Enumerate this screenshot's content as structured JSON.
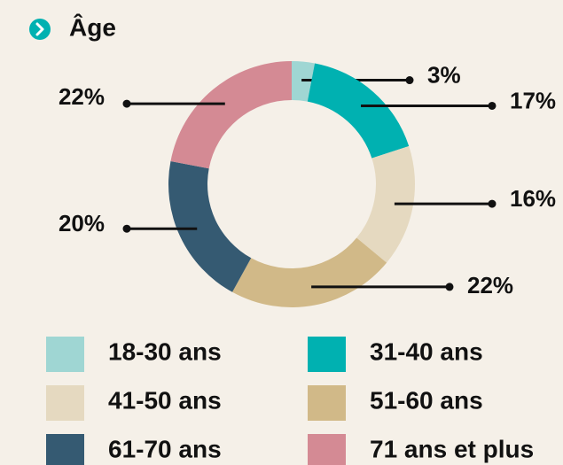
{
  "chart_data": {
    "type": "donut",
    "title": "Âge",
    "categories": [
      "18-30 ans",
      "31-40 ans",
      "41-50 ans",
      "51-60 ans",
      "61-70 ans",
      "71 ans et plus"
    ],
    "values": [
      3,
      17,
      16,
      22,
      20,
      22
    ],
    "value_labels": [
      "3%",
      "17%",
      "16%",
      "22%",
      "20%",
      "22%"
    ],
    "colors": [
      "#9fd6d3",
      "#00b1b1",
      "#e5d9c0",
      "#d1b988",
      "#355a72",
      "#d48a94"
    ]
  }
}
